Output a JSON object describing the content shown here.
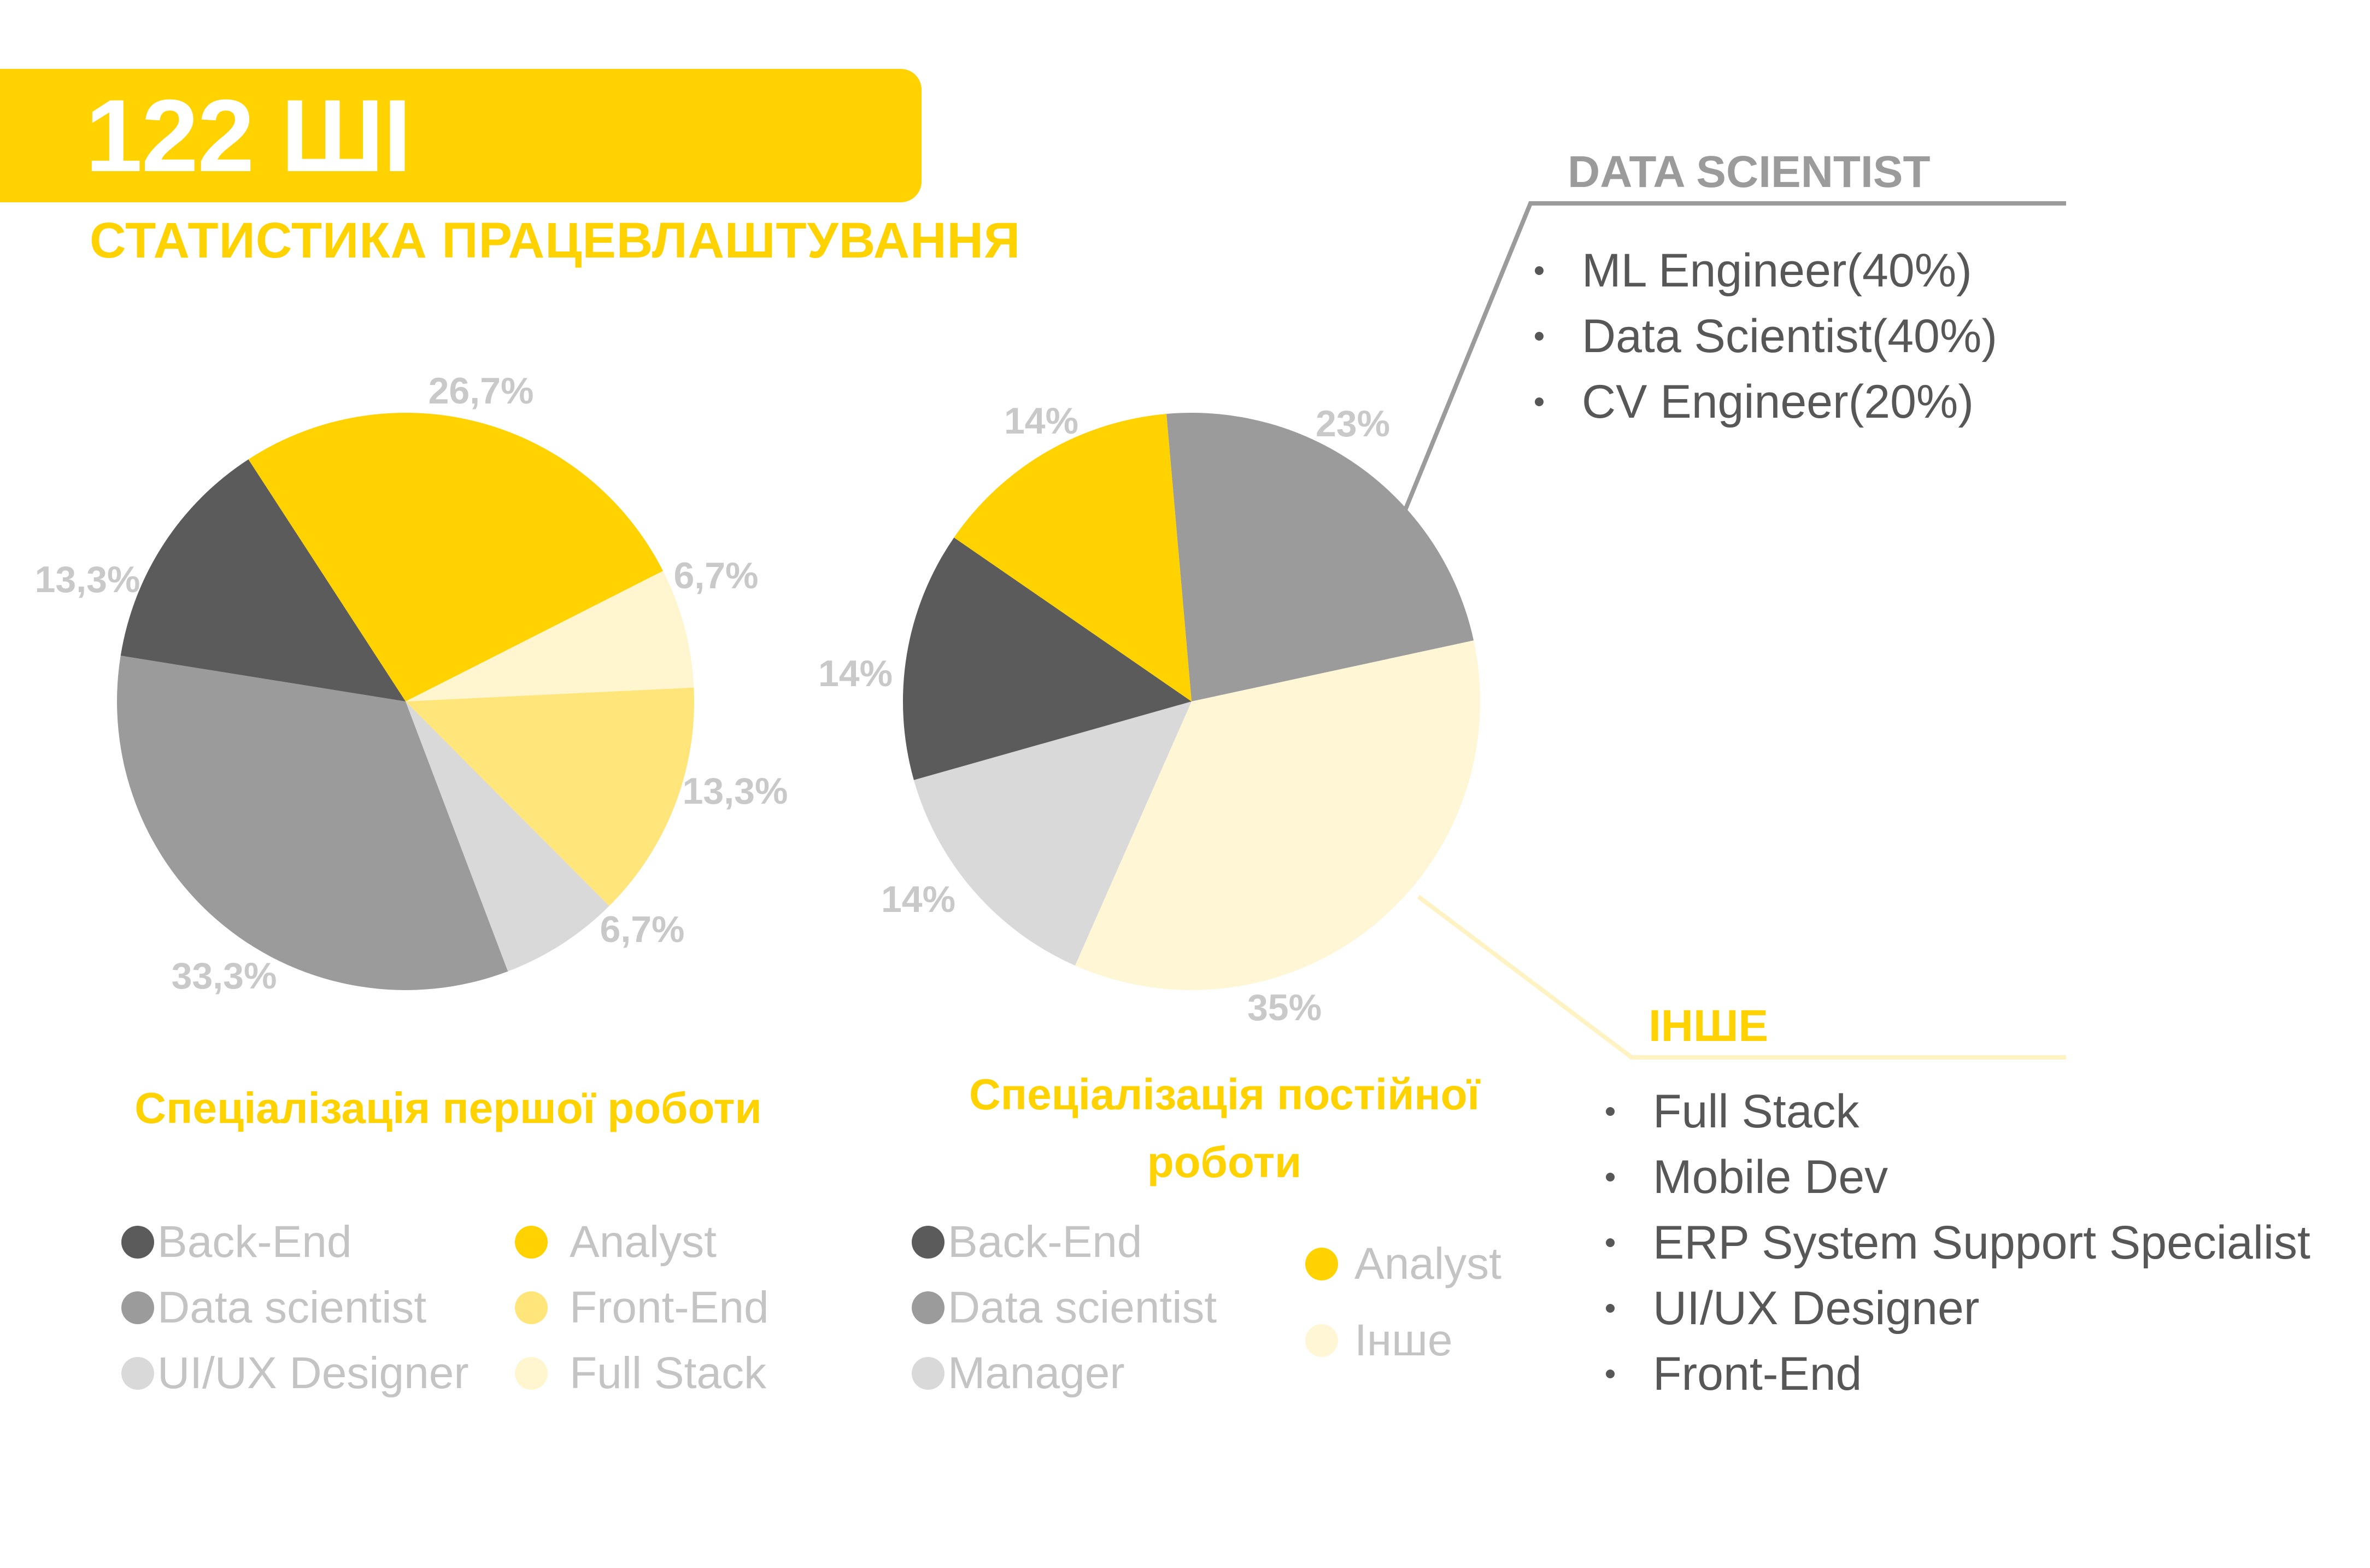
{
  "header": {
    "title": "122 ШІ",
    "subtitle": "СТАТИСТИКА ПРАЦЕВЛАШТУВАННЯ"
  },
  "colors": {
    "accent": "#FFD200",
    "back_end": "#5B5B5B",
    "data_scientist": "#9B9B9B",
    "ui_ux": "#D9D9D9",
    "analyst": "#FFD200",
    "front_end": "#FFE57A",
    "full_stack": "#FFF6CF",
    "manager": "#D9D9D9",
    "other": "#FFF6D6",
    "label_gray": "#C9C9C9",
    "text_dark": "#575757"
  },
  "chart_data": [
    {
      "type": "pie",
      "title": "Спеціалізація першої роботи",
      "slices": [
        {
          "name": "Analyst",
          "value": 26.7,
          "label": "26,7%",
          "color": "#FFD200"
        },
        {
          "name": "Full Stack",
          "value": 6.7,
          "label": "6,7%",
          "color": "#FFF6CF"
        },
        {
          "name": "Front-End",
          "value": 13.3,
          "label": "13,3%",
          "color": "#FFE57A"
        },
        {
          "name": "UI/UX Designer",
          "value": 6.7,
          "label": "6,7%",
          "color": "#D9D9D9"
        },
        {
          "name": "Data scientist",
          "value": 33.3,
          "label": "33,3%",
          "color": "#9B9B9B"
        },
        {
          "name": "Back-End",
          "value": 13.3,
          "label": "13,3%",
          "color": "#5B5B5B"
        }
      ],
      "legend": [
        {
          "label": "Back-End",
          "color": "#5B5B5B"
        },
        {
          "label": "Data scientist",
          "color": "#9B9B9B"
        },
        {
          "label": "UI/UX Designer",
          "color": "#D9D9D9"
        },
        {
          "label": "Analyst",
          "color": "#FFD200"
        },
        {
          "label": "Front-End",
          "color": "#FFE57A"
        },
        {
          "label": "Full Stack",
          "color": "#FFF6CF"
        }
      ]
    },
    {
      "type": "pie",
      "title": "Спеціалізація постійної роботи",
      "slices": [
        {
          "name": "Data scientist",
          "value": 23,
          "label": "23%",
          "color": "#9B9B9B"
        },
        {
          "name": "Інше",
          "value": 35,
          "label": "35%",
          "color": "#FFF6D6"
        },
        {
          "name": "Manager",
          "value": 14,
          "label": "14%",
          "color": "#D9D9D9"
        },
        {
          "name": "Back-End",
          "value": 14,
          "label": "14%",
          "color": "#5B5B5B"
        },
        {
          "name": "Analyst",
          "value": 14,
          "label": "14%",
          "color": "#FFD200"
        }
      ],
      "legend": [
        {
          "label": "Back-End",
          "color": "#5B5B5B"
        },
        {
          "label": "Data scientist",
          "color": "#9B9B9B"
        },
        {
          "label": "Manager",
          "color": "#D9D9D9"
        },
        {
          "label": "Analyst",
          "color": "#FFD200"
        },
        {
          "label": "Інше",
          "color": "#FFF6D6"
        }
      ]
    }
  ],
  "callouts": {
    "data_scientist": {
      "title": "DATA SCIENTIST",
      "items": [
        "ML Engineer(40%)",
        "Data Scientist(40%)",
        "CV Engineer(20%)"
      ]
    },
    "other": {
      "title": "ІНШЕ",
      "items": [
        "Full Stack",
        "Mobile Dev",
        "ERP System Support Specialist",
        "UI/UX Designer",
        "Front-End"
      ]
    }
  }
}
